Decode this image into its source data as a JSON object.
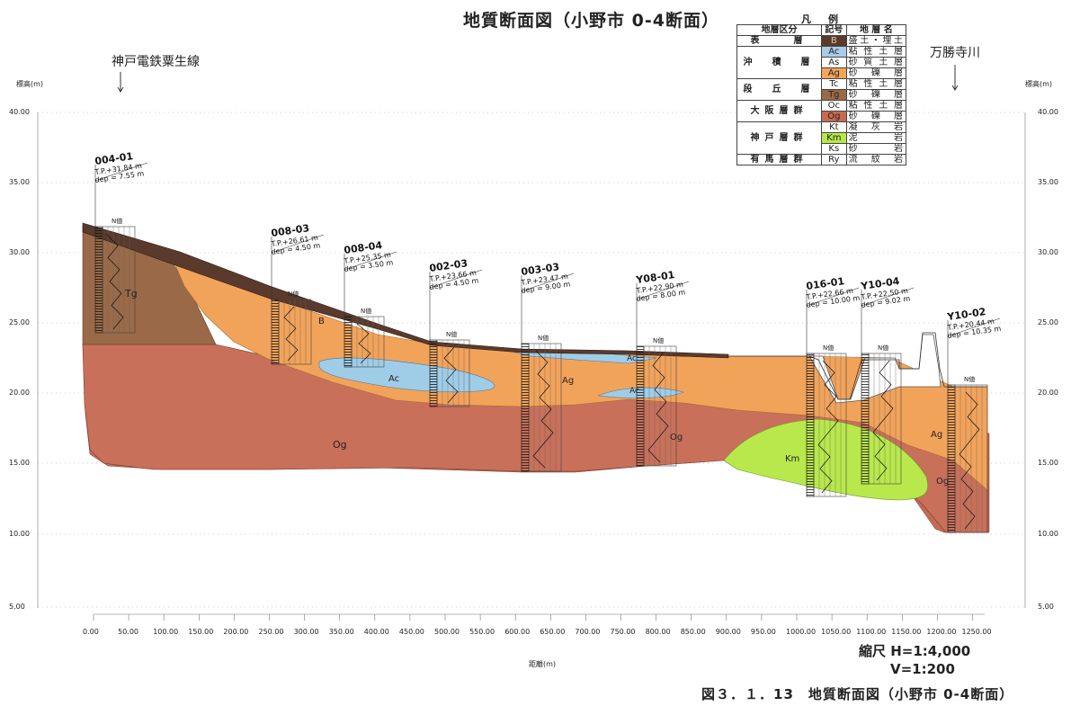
{
  "title": "地質断面図（小野市 0-4断面）",
  "rail_label": "神戸電鉄粟生線",
  "river_label": "万勝寺川",
  "y_axis_label_left": "標高(m)",
  "y_axis_label_right": "標高(m)",
  "x_axis_label": "距離(m)",
  "y_ticks": [
    "40.00",
    "35.00",
    "30.00",
    "25.00",
    "20.00",
    "15.00",
    "10.00",
    "5.00"
  ],
  "x_ticks": [
    "0.00",
    "50.00",
    "100.00",
    "150.00",
    "200.00",
    "250.00",
    "300.00",
    "350.00",
    "400.00",
    "450.00",
    "500.00",
    "550.00",
    "600.00",
    "650.00",
    "700.00",
    "750.00",
    "800.00",
    "850.00",
    "900.00",
    "950.00",
    "1000.00",
    "1050.00",
    "1100.00",
    "1150.00",
    "1200.00",
    "1250.00"
  ],
  "scale": {
    "h": "縮尺 H=1:4,000",
    "v": "V=1:200"
  },
  "caption": "図３．１．13　地質断面図（小野市 0-4断面）",
  "legend": {
    "title": "凡　例",
    "headers": [
      "地層区分",
      "記号",
      "地 層 名"
    ],
    "groups": [
      {
        "name": "表　　層",
        "rows": [
          {
            "code": "B",
            "name": "盛土・埋土",
            "color": "#5a3a2a"
          }
        ]
      },
      {
        "name": "沖　積　層",
        "rows": [
          {
            "code": "Ac",
            "name": "粘性土層",
            "color": "#a9cce8"
          },
          {
            "code": "As",
            "name": "砂質土層",
            "color": "#ffffff"
          },
          {
            "code": "Ag",
            "name": "砂礫層",
            "color": "#f4a55a"
          }
        ]
      },
      {
        "name": "段　丘　層",
        "rows": [
          {
            "code": "Tc",
            "name": "粘性土層",
            "color": "#ffffff"
          },
          {
            "code": "Tg",
            "name": "砂礫層",
            "color": "#9a6a48"
          }
        ]
      },
      {
        "name": "大阪層群",
        "rows": [
          {
            "code": "Oc",
            "name": "粘性土層",
            "color": "#ffffff"
          },
          {
            "code": "Og",
            "name": "砂礫層",
            "color": "#c86a50"
          }
        ]
      },
      {
        "name": "神戸層群",
        "rows": [
          {
            "code": "Kt",
            "name": "凝灰岩",
            "color": "#ffffff"
          },
          {
            "code": "Km",
            "name": "泥岩",
            "color": "#b6e848"
          },
          {
            "code": "Ks",
            "name": "砂岩",
            "color": "#ffffff"
          }
        ]
      },
      {
        "name": "有馬層群",
        "rows": [
          {
            "code": "Ry",
            "name": "流紋岩",
            "color": "#ffffff"
          }
        ]
      }
    ]
  },
  "layer_labels": [
    "Tg",
    "B",
    "Ac",
    "Ag",
    "Ac",
    "Ac",
    "Og",
    "Og",
    "Km",
    "Ag",
    "Og"
  ],
  "n_value_label": "N値",
  "boreholes": [
    {
      "id": "004-01",
      "tp": "T.P.+31.84 m",
      "dep": "dep = 7.55 m"
    },
    {
      "id": "008-03",
      "tp": "T.P.+26.61 m",
      "dep": "dep = 4.50 m"
    },
    {
      "id": "008-04",
      "tp": "T.P.+25.35 m",
      "dep": "dep = 3.50 m"
    },
    {
      "id": "002-03",
      "tp": "T.P.+23.66 m",
      "dep": "dep = 4.50 m"
    },
    {
      "id": "003-03",
      "tp": "T.P.+23.47 m",
      "dep": "dep = 9.00 m"
    },
    {
      "id": "Y08-01",
      "tp": "T.P.+22.90 m",
      "dep": "dep = 8.00 m"
    },
    {
      "id": "016-01",
      "tp": "T.P.+22.66 m",
      "dep": "dep = 10.00 m"
    },
    {
      "id": "Y10-04",
      "tp": "T.P.+22.50 m",
      "dep": "dep = 9.02 m"
    },
    {
      "id": "Y10-02",
      "tp": "T.P.+20.44 m",
      "dep": "dep = 10.35 m"
    }
  ]
}
